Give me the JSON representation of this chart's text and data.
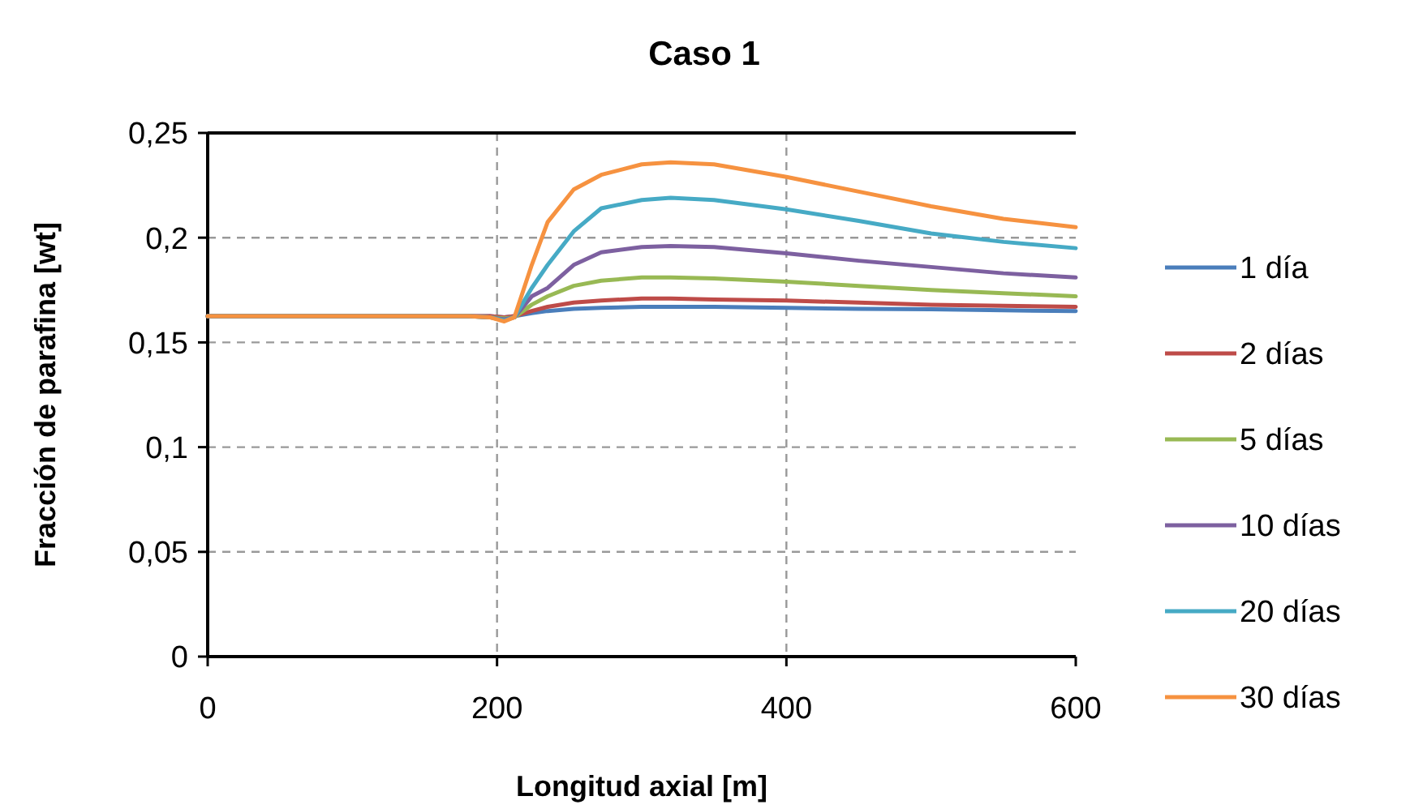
{
  "chart_data": {
    "type": "line",
    "title": "Caso 1",
    "xlabel": "Longitud axial [m]",
    "ylabel": "Fracción de parafina [wt]",
    "x": [
      0,
      180,
      195,
      205,
      212,
      224,
      235,
      253,
      272,
      300,
      320,
      350,
      400,
      450,
      500,
      550,
      600
    ],
    "series": [
      {
        "name": "1 día",
        "color": "#4a7ebb",
        "values": [
          0.1625,
          0.1625,
          0.1625,
          0.162,
          0.1625,
          0.164,
          0.165,
          0.166,
          0.1665,
          0.167,
          0.167,
          0.167,
          0.1665,
          0.166,
          0.1658,
          0.1653,
          0.165
        ]
      },
      {
        "name": "2 días",
        "color": "#be4b48",
        "values": [
          0.1625,
          0.1625,
          0.1625,
          0.162,
          0.1625,
          0.165,
          0.167,
          0.169,
          0.17,
          0.171,
          0.171,
          0.1705,
          0.17,
          0.169,
          0.168,
          0.1675,
          0.167
        ]
      },
      {
        "name": "5 días",
        "color": "#98b954",
        "values": [
          0.1625,
          0.1625,
          0.162,
          0.1615,
          0.162,
          0.168,
          0.172,
          0.177,
          0.1795,
          0.181,
          0.181,
          0.1805,
          0.179,
          0.177,
          0.175,
          0.1735,
          0.172
        ]
      },
      {
        "name": "10 días",
        "color": "#7d60a0",
        "values": [
          0.1625,
          0.1625,
          0.162,
          0.161,
          0.162,
          0.172,
          0.176,
          0.187,
          0.193,
          0.1955,
          0.196,
          0.1955,
          0.1925,
          0.189,
          0.186,
          0.183,
          0.181
        ]
      },
      {
        "name": "20 días",
        "color": "#46aac5",
        "values": [
          0.1625,
          0.1625,
          0.162,
          0.1605,
          0.162,
          0.176,
          0.187,
          0.203,
          0.214,
          0.218,
          0.219,
          0.218,
          0.2135,
          0.208,
          0.202,
          0.198,
          0.195
        ]
      },
      {
        "name": "30 días",
        "color": "#f69240",
        "values": [
          0.1625,
          0.1625,
          0.162,
          0.16,
          0.162,
          0.187,
          0.2075,
          0.223,
          0.23,
          0.235,
          0.236,
          0.235,
          0.229,
          0.222,
          0.215,
          0.209,
          0.205
        ]
      }
    ],
    "xlim": [
      0,
      600
    ],
    "xticks": [
      0,
      200,
      400,
      600
    ],
    "ylim": [
      0,
      0.25
    ],
    "yticks": [
      {
        "value": 0,
        "label": "0"
      },
      {
        "value": 0.05,
        "label": "0,05"
      },
      {
        "value": 0.1,
        "label": "0,1"
      },
      {
        "value": 0.15,
        "label": "0,15"
      },
      {
        "value": 0.2,
        "label": "0,2"
      },
      {
        "value": 0.25,
        "label": "0,25"
      }
    ],
    "grid": true,
    "legend": "right",
    "line_style": "solid",
    "marker": "none"
  }
}
